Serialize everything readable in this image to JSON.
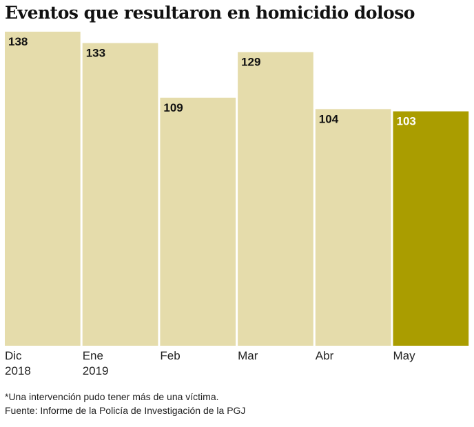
{
  "chart_data": {
    "type": "bar",
    "title": "Eventos que resultaron en homicidio doloso",
    "categories": [
      "Dic 2018",
      "Ene 2019",
      "Feb",
      "Mar",
      "Abr",
      "May"
    ],
    "values": [
      138,
      133,
      109,
      129,
      104,
      103
    ],
    "colors": [
      "#e5dcab",
      "#e5dcab",
      "#e5dcab",
      "#e5dcab",
      "#e5dcab",
      "#aa9d00"
    ],
    "notes": [
      "*Una intervención pudo tener más de una víctima.",
      "Fuente: Informe de la Policía de Investigación de la PGJ"
    ]
  }
}
